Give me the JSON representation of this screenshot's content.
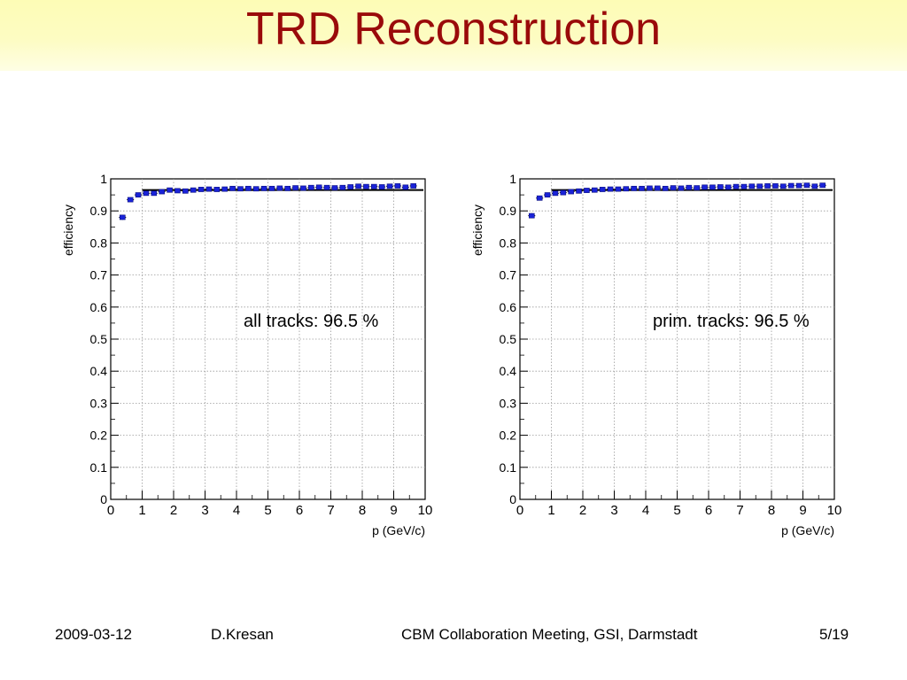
{
  "slide": {
    "title": "TRD Reconstruction",
    "footer": {
      "date": "2009-03-12",
      "author": "D.Kresan",
      "event": "CBM Collaboration Meeting, GSI, Darmstadt",
      "page": "5/19"
    }
  },
  "colors": {
    "title": "#9a0a0a",
    "marker": "#1a23d8",
    "reference_line": "#000000"
  },
  "chart_data": [
    {
      "type": "scatter",
      "title": "",
      "xlabel": "p (GeV/c)",
      "ylabel": "efficiency",
      "xlim": [
        0,
        10
      ],
      "ylim": [
        0,
        1
      ],
      "xticks": [
        "0",
        "1",
        "2",
        "3",
        "4",
        "5",
        "6",
        "7",
        "8",
        "9",
        "10"
      ],
      "yticks": [
        "0",
        "0.1",
        "0.2",
        "0.3",
        "0.4",
        "0.5",
        "0.6",
        "0.7",
        "0.8",
        "0.9",
        "1"
      ],
      "grid": true,
      "annotation": "all tracks: 96.5 %",
      "reference_line": {
        "value": 0.965,
        "x_range": [
          1,
          10
        ]
      },
      "series": [
        {
          "x": [
            0.375,
            0.625,
            0.875,
            1.125,
            1.375,
            1.625,
            1.875,
            2.125,
            2.375,
            2.625,
            2.875,
            3.125,
            3.375,
            3.625,
            3.875,
            4.125,
            4.375,
            4.625,
            4.875,
            5.125,
            5.375,
            5.625,
            5.875,
            6.125,
            6.375,
            6.625,
            6.875,
            7.125,
            7.375,
            7.625,
            7.875,
            8.125,
            8.375,
            8.625,
            8.875,
            9.125,
            9.375,
            9.625
          ],
          "y": [
            0.88,
            0.935,
            0.95,
            0.955,
            0.955,
            0.96,
            0.965,
            0.963,
            0.962,
            0.965,
            0.967,
            0.968,
            0.967,
            0.968,
            0.97,
            0.969,
            0.97,
            0.969,
            0.97,
            0.97,
            0.971,
            0.97,
            0.972,
            0.971,
            0.973,
            0.974,
            0.973,
            0.972,
            0.973,
            0.975,
            0.977,
            0.976,
            0.976,
            0.975,
            0.977,
            0.978,
            0.974,
            0.978
          ],
          "y_err": [
            0.005,
            0.004,
            0.004,
            0.004,
            0.004,
            0.003,
            0.003,
            0.003,
            0.003,
            0.003,
            0.003,
            0.003,
            0.003,
            0.003,
            0.003,
            0.003,
            0.003,
            0.003,
            0.003,
            0.003,
            0.003,
            0.003,
            0.003,
            0.003,
            0.003,
            0.003,
            0.003,
            0.003,
            0.003,
            0.003,
            0.003,
            0.003,
            0.003,
            0.003,
            0.003,
            0.003,
            0.003,
            0.003
          ]
        }
      ]
    },
    {
      "type": "scatter",
      "title": "",
      "xlabel": "p (GeV/c)",
      "ylabel": "efficiency",
      "xlim": [
        0,
        10
      ],
      "ylim": [
        0,
        1
      ],
      "xticks": [
        "0",
        "1",
        "2",
        "3",
        "4",
        "5",
        "6",
        "7",
        "8",
        "9",
        "10"
      ],
      "yticks": [
        "0",
        "0.1",
        "0.2",
        "0.3",
        "0.4",
        "0.5",
        "0.6",
        "0.7",
        "0.8",
        "0.9",
        "1"
      ],
      "grid": true,
      "annotation": "prim. tracks: 96.5 %",
      "reference_line": {
        "value": 0.965,
        "x_range": [
          1,
          10
        ]
      },
      "series": [
        {
          "x": [
            0.375,
            0.625,
            0.875,
            1.125,
            1.375,
            1.625,
            1.875,
            2.125,
            2.375,
            2.625,
            2.875,
            3.125,
            3.375,
            3.625,
            3.875,
            4.125,
            4.375,
            4.625,
            4.875,
            5.125,
            5.375,
            5.625,
            5.875,
            6.125,
            6.375,
            6.625,
            6.875,
            7.125,
            7.375,
            7.625,
            7.875,
            8.125,
            8.375,
            8.625,
            8.875,
            9.125,
            9.375,
            9.625
          ],
          "y": [
            0.885,
            0.94,
            0.95,
            0.955,
            0.957,
            0.96,
            0.962,
            0.964,
            0.965,
            0.967,
            0.968,
            0.968,
            0.969,
            0.97,
            0.97,
            0.971,
            0.971,
            0.97,
            0.972,
            0.971,
            0.973,
            0.972,
            0.974,
            0.974,
            0.975,
            0.974,
            0.976,
            0.976,
            0.977,
            0.977,
            0.978,
            0.978,
            0.977,
            0.979,
            0.979,
            0.98,
            0.977,
            0.98
          ],
          "y_err": [
            0.005,
            0.004,
            0.004,
            0.004,
            0.004,
            0.003,
            0.003,
            0.003,
            0.003,
            0.003,
            0.003,
            0.003,
            0.003,
            0.003,
            0.003,
            0.003,
            0.003,
            0.003,
            0.003,
            0.003,
            0.003,
            0.003,
            0.003,
            0.003,
            0.003,
            0.003,
            0.003,
            0.003,
            0.003,
            0.003,
            0.003,
            0.003,
            0.003,
            0.003,
            0.003,
            0.003,
            0.003,
            0.003
          ]
        }
      ]
    }
  ]
}
